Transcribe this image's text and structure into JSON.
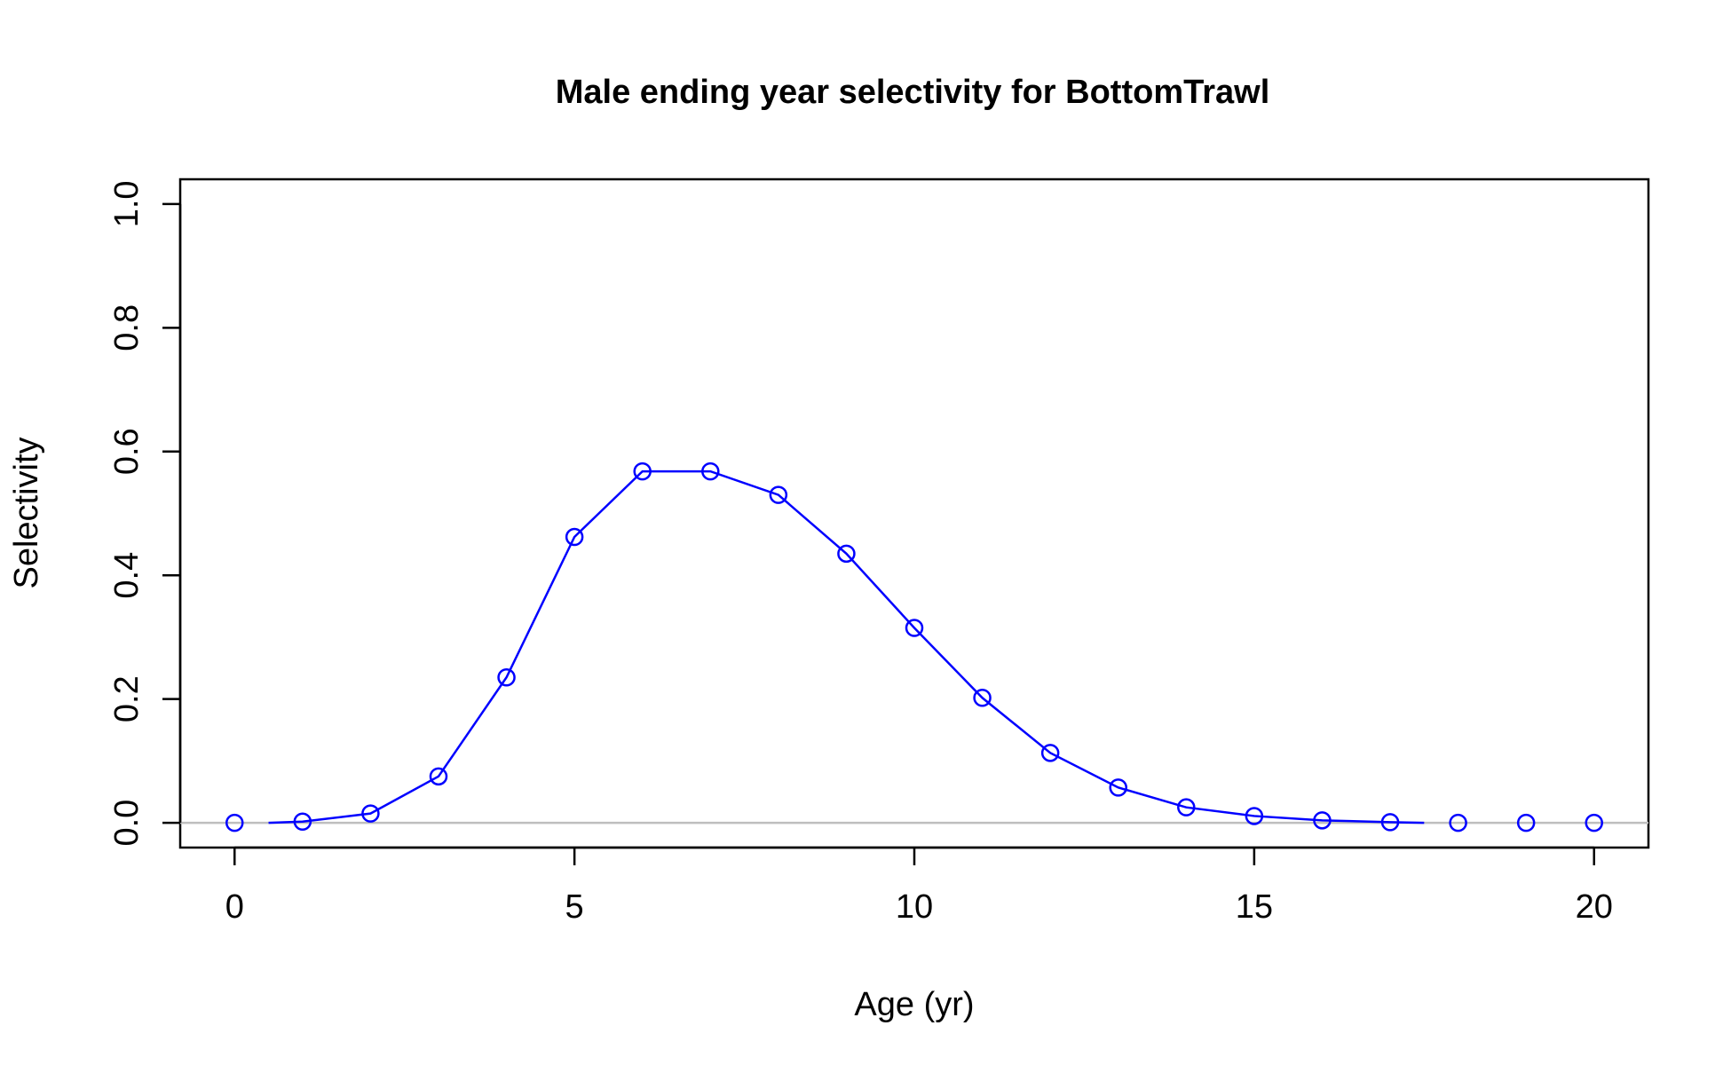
{
  "chart_data": {
    "type": "line",
    "title": "Male ending year selectivity for BottomTrawl",
    "xlabel": "Age (yr)",
    "ylabel": "Selectivity",
    "xlim": [
      -0.8,
      20.8
    ],
    "ylim": [
      -0.04,
      1.04
    ],
    "x_ticks": [
      0,
      5,
      10,
      15,
      20
    ],
    "y_ticks": [
      0.0,
      0.2,
      0.4,
      0.6,
      0.8,
      1.0
    ],
    "x_tick_labels": [
      "0",
      "5",
      "10",
      "15",
      "20"
    ],
    "y_tick_labels": [
      "0.0",
      "0.2",
      "0.4",
      "0.6",
      "0.8",
      "1.0"
    ],
    "grid": false,
    "reference_line": {
      "y": 0,
      "color": "#bebebe"
    },
    "series": [
      {
        "color": "#0000ff",
        "marker": "open-circle",
        "points_x": [
          0,
          1,
          2,
          3,
          4,
          5,
          6,
          7,
          8,
          9,
          10,
          11,
          12,
          13,
          14,
          15,
          16,
          17,
          18,
          19,
          20
        ],
        "points_y": [
          0.0,
          0.002,
          0.015,
          0.075,
          0.235,
          0.462,
          0.568,
          0.568,
          0.53,
          0.435,
          0.315,
          0.202,
          0.113,
          0.057,
          0.025,
          0.011,
          0.004,
          0.001,
          0.0,
          0.0,
          0.0
        ],
        "line_x": [
          0.5,
          1,
          2,
          3,
          4,
          5,
          6,
          7,
          8,
          9,
          10,
          11,
          12,
          13,
          14,
          15,
          16,
          17,
          17.5
        ],
        "line_y": [
          0.0,
          0.002,
          0.015,
          0.075,
          0.235,
          0.462,
          0.568,
          0.568,
          0.53,
          0.435,
          0.315,
          0.202,
          0.113,
          0.057,
          0.025,
          0.011,
          0.004,
          0.001,
          0.0
        ]
      }
    ]
  }
}
